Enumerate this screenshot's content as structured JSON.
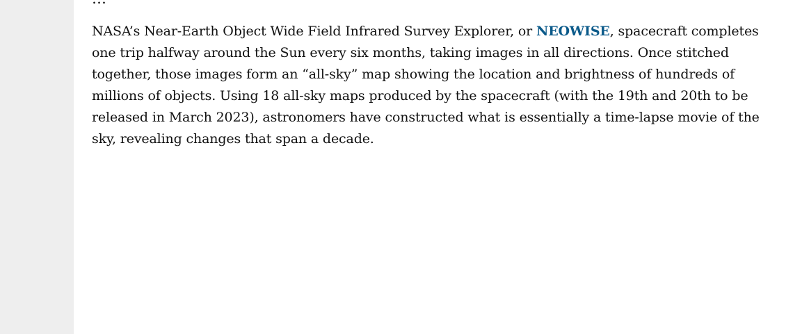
{
  "article": {
    "cutoff_text": "…",
    "paragraph": {
      "line1_before": "NASA’s Near-Earth Object Wide Field Infrared Survey Explorer, or ",
      "link_text": "NEOWISE",
      "line1_after": ", spacecraft completes",
      "line2": "one trip halfway around the Sun every six months, taking images in all directions. Once stitched",
      "line3": "together, those images form an “all-sky” map showing the location and brightness of hundreds of",
      "line4": "millions of objects. Using 18 all-sky maps produced by the spacecraft (with the 19th and 20th to be",
      "line5": "released in March 2023), astronomers have constructed what is essentially a time-lapse movie of the",
      "line6": "sky, revealing changes that span a decade."
    }
  },
  "colors": {
    "link": "#0b5a8a",
    "text": "#111111",
    "gutter": "#eeeeee"
  }
}
